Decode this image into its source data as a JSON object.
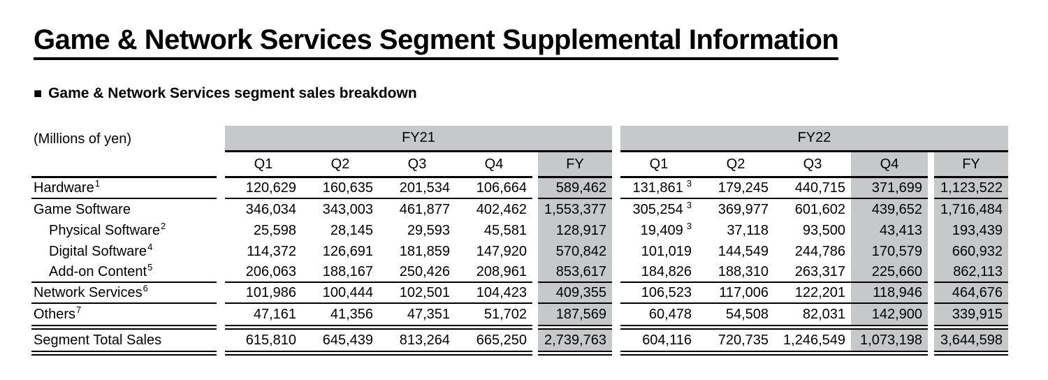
{
  "page_title": "Game & Network Services Segment Supplemental Information",
  "section": {
    "marker_icon": "■",
    "heading": "Game & Network Services segment sales breakdown"
  },
  "units_label": "(Millions of yen)",
  "colors": {
    "table_shade": "#c6c8ca",
    "rule": "#000000",
    "text": "#000000"
  },
  "table": {
    "groups": [
      {
        "label": "FY21"
      },
      {
        "label": "FY22"
      }
    ],
    "quarter_headers": [
      "Q1",
      "Q2",
      "Q3",
      "Q4",
      "FY"
    ],
    "rows": [
      {
        "label": "Hardware",
        "sup": "1",
        "q1sup": "3",
        "fy21": [
          "120,629",
          "160,635",
          "201,534",
          "106,664",
          "589,462"
        ],
        "fy22": [
          "131,861",
          "179,245",
          "440,715",
          "371,699",
          "1,123,522"
        ]
      },
      {
        "label": "Game Software",
        "sup": "",
        "q1sup": "3",
        "fy21": [
          "346,034",
          "343,003",
          "461,877",
          "402,462",
          "1,553,377"
        ],
        "fy22": [
          "305,254",
          "369,977",
          "601,602",
          "439,652",
          "1,716,484"
        ]
      },
      {
        "label": "Physical Software",
        "sup": "2",
        "q1sup": "3",
        "fy21": [
          "25,598",
          "28,145",
          "29,593",
          "45,581",
          "128,917"
        ],
        "fy22": [
          "19,409",
          "37,118",
          "93,500",
          "43,413",
          "193,439"
        ]
      },
      {
        "label": "Digital Software",
        "sup": "4",
        "q1sup": "",
        "fy21": [
          "114,372",
          "126,691",
          "181,859",
          "147,920",
          "570,842"
        ],
        "fy22": [
          "101,019",
          "144,549",
          "244,786",
          "170,579",
          "660,932"
        ]
      },
      {
        "label": "Add-on Content",
        "sup": "5",
        "q1sup": "",
        "fy21": [
          "206,063",
          "188,167",
          "250,426",
          "208,961",
          "853,617"
        ],
        "fy22": [
          "184,826",
          "188,310",
          "263,317",
          "225,660",
          "862,113"
        ]
      },
      {
        "label": "Network Services",
        "sup": "6",
        "q1sup": "",
        "fy21": [
          "101,986",
          "100,444",
          "102,501",
          "104,423",
          "409,355"
        ],
        "fy22": [
          "106,523",
          "117,006",
          "122,201",
          "118,946",
          "464,676"
        ]
      },
      {
        "label": "Others",
        "sup": "7",
        "q1sup": "",
        "fy21": [
          "47,161",
          "41,356",
          "47,351",
          "51,702",
          "187,569"
        ],
        "fy22": [
          "60,478",
          "54,508",
          "82,031",
          "142,900",
          "339,915"
        ]
      },
      {
        "label": "Segment Total Sales",
        "sup": "",
        "q1sup": "",
        "fy21": [
          "615,810",
          "645,439",
          "813,264",
          "665,250",
          "2,739,763"
        ],
        "fy22": [
          "604,116",
          "720,735",
          "1,246,549",
          "1,073,198",
          "3,644,598"
        ]
      }
    ]
  }
}
